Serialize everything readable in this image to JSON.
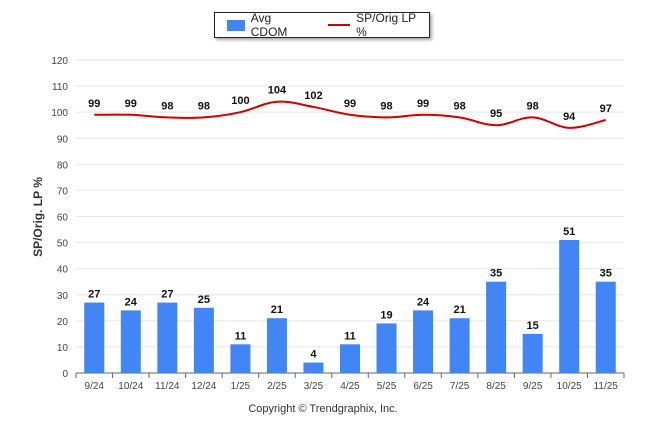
{
  "legend": {
    "bar_label": "Avg CDOM",
    "line_label": "SP/Orig LP %"
  },
  "copyright": "Copyright © Trendgraphix, Inc.",
  "colors": {
    "bar": "#4285f4",
    "line": "#cc0000",
    "grid": "#e6e6e6",
    "axis": "#666666"
  },
  "chart_data": {
    "type": "bar",
    "categories": [
      "9/24",
      "10/24",
      "11/24",
      "12/24",
      "1/25",
      "2/25",
      "3/25",
      "4/25",
      "5/25",
      "6/25",
      "7/25",
      "8/25",
      "9/25",
      "10/25",
      "11/25"
    ],
    "series": [
      {
        "name": "Avg CDOM",
        "type": "bar",
        "values": [
          27,
          24,
          27,
          25,
          11,
          21,
          4,
          11,
          19,
          24,
          21,
          35,
          15,
          51,
          35
        ]
      },
      {
        "name": "SP/Orig LP %",
        "type": "line",
        "values": [
          99,
          99,
          98,
          98,
          100,
          104,
          102,
          99,
          98,
          99,
          98,
          95,
          98,
          94,
          97
        ]
      }
    ],
    "ylabel": "SP/Orig. LP %",
    "ylim": [
      0,
      120
    ],
    "yticks": [
      0,
      10,
      20,
      30,
      40,
      50,
      60,
      70,
      80,
      90,
      100,
      110,
      120
    ],
    "grid": true,
    "legend": "top-center"
  }
}
